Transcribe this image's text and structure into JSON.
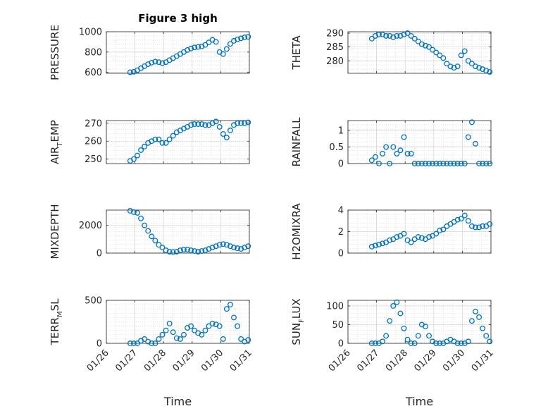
{
  "colors": {
    "marker": "#0072BD",
    "axis": "#262626",
    "grid": "#d9d9d9"
  },
  "xlabel": "Time",
  "chart_data": [
    {
      "type": "scatter",
      "title": "Figure 3 high",
      "ylabel": "PRESSURE",
      "ylim": [
        590,
        1000
      ],
      "yticks": [
        600,
        800,
        1000
      ],
      "ytick_labels": [
        "600",
        "800",
        "1000"
      ],
      "x": [
        "01/26 20:00",
        "01/26 23:00",
        "01/27 02:00",
        "01/27 05:00",
        "01/27 08:00",
        "01/27 11:00",
        "01/27 14:00",
        "01/27 17:00",
        "01/27 20:00",
        "01/27 23:00",
        "01/28 02:00",
        "01/28 05:00",
        "01/28 08:00",
        "01/28 11:00",
        "01/28 14:00",
        "01/28 17:00",
        "01/28 20:00",
        "01/28 23:00",
        "01/29 02:00",
        "01/29 05:00",
        "01/29 08:00",
        "01/29 11:00",
        "01/29 14:00",
        "01/29 17:00",
        "01/29 20:00",
        "01/29 23:00",
        "01/30 02:00",
        "01/30 05:00",
        "01/30 08:00",
        "01/30 11:00",
        "01/30 14:00",
        "01/30 17:00",
        "01/30 20:00",
        "01/30 23:00"
      ],
      "values": [
        600,
        605,
        620,
        640,
        660,
        680,
        695,
        705,
        700,
        690,
        700,
        720,
        740,
        760,
        780,
        800,
        820,
        835,
        845,
        850,
        855,
        870,
        895,
        920,
        900,
        800,
        780,
        830,
        880,
        910,
        925,
        935,
        945,
        950
      ]
    },
    {
      "type": "scatter",
      "title": "",
      "ylabel": "THETA",
      "ylim": [
        275.5,
        290.5
      ],
      "yticks": [
        280,
        285,
        290
      ],
      "ytick_labels": [
        "280",
        "285",
        "290"
      ],
      "x": [
        "01/26 20:00",
        "01/26 23:00",
        "01/27 02:00",
        "01/27 05:00",
        "01/27 08:00",
        "01/27 11:00",
        "01/27 14:00",
        "01/27 17:00",
        "01/27 20:00",
        "01/27 23:00",
        "01/28 02:00",
        "01/28 05:00",
        "01/28 08:00",
        "01/28 11:00",
        "01/28 14:00",
        "01/28 17:00",
        "01/28 20:00",
        "01/28 23:00",
        "01/29 02:00",
        "01/29 05:00",
        "01/29 08:00",
        "01/29 11:00",
        "01/29 14:00",
        "01/29 17:00",
        "01/29 20:00",
        "01/29 23:00",
        "01/30 02:00",
        "01/30 05:00",
        "01/30 08:00",
        "01/30 11:00",
        "01/30 14:00",
        "01/30 17:00",
        "01/30 20:00",
        "01/30 23:00"
      ],
      "values": [
        288,
        289,
        289.5,
        289.5,
        289,
        289,
        288.5,
        289,
        289,
        289.5,
        290,
        289,
        288,
        287,
        286,
        285.5,
        285,
        284,
        283,
        282,
        281,
        279,
        278,
        277.5,
        278,
        282,
        283.5,
        280,
        279,
        278,
        277.5,
        277,
        276.5,
        276
      ]
    },
    {
      "type": "scatter",
      "title": "",
      "ylabel": "AIR_TEMP",
      "ylabel_parts": [
        "AIR",
        "T",
        "EMP"
      ],
      "ylim": [
        247.5,
        271.5
      ],
      "yticks": [
        250,
        260,
        270
      ],
      "ytick_labels": [
        "250",
        "260",
        "270"
      ],
      "x": [
        "01/26 20:00",
        "01/26 23:00",
        "01/27 02:00",
        "01/27 05:00",
        "01/27 08:00",
        "01/27 11:00",
        "01/27 14:00",
        "01/27 17:00",
        "01/27 20:00",
        "01/27 23:00",
        "01/28 02:00",
        "01/28 05:00",
        "01/28 08:00",
        "01/28 11:00",
        "01/28 14:00",
        "01/28 17:00",
        "01/28 20:00",
        "01/28 23:00",
        "01/29 02:00",
        "01/29 05:00",
        "01/29 08:00",
        "01/29 11:00",
        "01/29 14:00",
        "01/29 17:00",
        "01/29 20:00",
        "01/29 23:00",
        "01/30 02:00",
        "01/30 05:00",
        "01/30 08:00",
        "01/30 11:00",
        "01/30 14:00",
        "01/30 17:00",
        "01/30 20:00",
        "01/30 23:00"
      ],
      "values": [
        249,
        250,
        252,
        255,
        257,
        259,
        260,
        261,
        261,
        259,
        259,
        261,
        263,
        265,
        266,
        267,
        268,
        269,
        269.5,
        269.5,
        269.5,
        269,
        269,
        270,
        271,
        268,
        264,
        262,
        266,
        269,
        270,
        270,
        270,
        270.5
      ]
    },
    {
      "type": "scatter",
      "title": "",
      "ylabel": "RAINFALL",
      "ylim": [
        0,
        1.3
      ],
      "yticks": [
        0,
        0.5,
        1
      ],
      "ytick_labels": [
        "0",
        "0.5",
        "1"
      ],
      "x": [
        "01/26 20:00",
        "01/26 23:00",
        "01/27 02:00",
        "01/27 05:00",
        "01/27 08:00",
        "01/27 11:00",
        "01/27 14:00",
        "01/27 17:00",
        "01/27 20:00",
        "01/27 23:00",
        "01/28 02:00",
        "01/28 05:00",
        "01/28 08:00",
        "01/28 11:00",
        "01/28 14:00",
        "01/28 17:00",
        "01/28 20:00",
        "01/28 23:00",
        "01/29 02:00",
        "01/29 05:00",
        "01/29 08:00",
        "01/29 11:00",
        "01/29 14:00",
        "01/29 17:00",
        "01/29 20:00",
        "01/29 23:00",
        "01/30 02:00",
        "01/30 05:00",
        "01/30 08:00",
        "01/30 11:00",
        "01/30 14:00",
        "01/30 17:00",
        "01/30 20:00",
        "01/30 23:00"
      ],
      "values": [
        0.1,
        0.2,
        0,
        0.3,
        0.5,
        0,
        0.5,
        0.3,
        0.4,
        0.8,
        0.3,
        0.3,
        0,
        0,
        0,
        0,
        0,
        0,
        0,
        0,
        0,
        0,
        0,
        0,
        0,
        0,
        0,
        0.8,
        1.25,
        0.6,
        0,
        0,
        0,
        0
      ]
    },
    {
      "type": "scatter",
      "title": "",
      "ylabel": "MIXDEPTH",
      "ylim": [
        0,
        3100
      ],
      "yticks": [
        0,
        2000
      ],
      "ytick_labels": [
        "0",
        "2000"
      ],
      "x": [
        "01/26 20:00",
        "01/26 23:00",
        "01/27 02:00",
        "01/27 05:00",
        "01/27 08:00",
        "01/27 11:00",
        "01/27 14:00",
        "01/27 17:00",
        "01/27 20:00",
        "01/27 23:00",
        "01/28 02:00",
        "01/28 05:00",
        "01/28 08:00",
        "01/28 11:00",
        "01/28 14:00",
        "01/28 17:00",
        "01/28 20:00",
        "01/28 23:00",
        "01/29 02:00",
        "01/29 05:00",
        "01/29 08:00",
        "01/29 11:00",
        "01/29 14:00",
        "01/29 17:00",
        "01/29 20:00",
        "01/29 23:00",
        "01/30 02:00",
        "01/30 05:00",
        "01/30 08:00",
        "01/30 11:00",
        "01/30 14:00",
        "01/30 17:00",
        "01/30 20:00",
        "01/30 23:00"
      ],
      "values": [
        3050,
        2950,
        2900,
        2500,
        2000,
        1600,
        1200,
        900,
        600,
        400,
        200,
        100,
        80,
        100,
        200,
        250,
        250,
        200,
        150,
        100,
        150,
        200,
        300,
        400,
        500,
        600,
        650,
        600,
        500,
        400,
        350,
        300,
        400,
        500
      ]
    },
    {
      "type": "scatter",
      "title": "",
      "ylabel": "H2OMIXRA",
      "ylim": [
        0,
        4
      ],
      "yticks": [
        0,
        2,
        4
      ],
      "ytick_labels": [
        "0",
        "2",
        "4"
      ],
      "x": [
        "01/26 20:00",
        "01/26 23:00",
        "01/27 02:00",
        "01/27 05:00",
        "01/27 08:00",
        "01/27 11:00",
        "01/27 14:00",
        "01/27 17:00",
        "01/27 20:00",
        "01/27 23:00",
        "01/28 02:00",
        "01/28 05:00",
        "01/28 08:00",
        "01/28 11:00",
        "01/28 14:00",
        "01/28 17:00",
        "01/28 20:00",
        "01/28 23:00",
        "01/29 02:00",
        "01/29 05:00",
        "01/29 08:00",
        "01/29 11:00",
        "01/29 14:00",
        "01/29 17:00",
        "01/29 20:00",
        "01/29 23:00",
        "01/30 02:00",
        "01/30 05:00",
        "01/30 08:00",
        "01/30 11:00",
        "01/30 14:00",
        "01/30 17:00",
        "01/30 20:00",
        "01/30 23:00"
      ],
      "values": [
        0.6,
        0.7,
        0.8,
        0.9,
        1.0,
        1.2,
        1.3,
        1.5,
        1.6,
        1.8,
        1.2,
        1.0,
        1.3,
        1.5,
        1.4,
        1.3,
        1.5,
        1.6,
        1.8,
        2.1,
        2.2,
        2.5,
        2.7,
        2.9,
        3.1,
        3.2,
        3.5,
        3.0,
        2.5,
        2.4,
        2.4,
        2.5,
        2.5,
        2.7
      ]
    },
    {
      "type": "scatter",
      "title": "",
      "ylabel": "TERR_MSL",
      "ylabel_parts": [
        "TERR",
        "M",
        "SL"
      ],
      "ylim": [
        0,
        500
      ],
      "yticks": [
        0,
        500
      ],
      "ytick_labels": [
        "0",
        "500"
      ],
      "x": [
        "01/26 20:00",
        "01/26 23:00",
        "01/27 02:00",
        "01/27 05:00",
        "01/27 08:00",
        "01/27 11:00",
        "01/27 14:00",
        "01/27 17:00",
        "01/27 20:00",
        "01/27 23:00",
        "01/28 02:00",
        "01/28 05:00",
        "01/28 08:00",
        "01/28 11:00",
        "01/28 14:00",
        "01/28 17:00",
        "01/28 20:00",
        "01/28 23:00",
        "01/29 02:00",
        "01/29 05:00",
        "01/29 08:00",
        "01/29 11:00",
        "01/29 14:00",
        "01/29 17:00",
        "01/29 20:00",
        "01/29 23:00",
        "01/30 02:00",
        "01/30 05:00",
        "01/30 08:00",
        "01/30 11:00",
        "01/30 14:00",
        "01/30 17:00",
        "01/30 20:00",
        "01/30 23:00"
      ],
      "values": [
        0,
        0,
        0,
        30,
        50,
        20,
        0,
        0,
        50,
        100,
        150,
        230,
        130,
        60,
        50,
        100,
        180,
        200,
        150,
        120,
        100,
        150,
        200,
        230,
        220,
        200,
        50,
        400,
        450,
        300,
        200,
        50,
        20,
        40
      ]
    },
    {
      "type": "scatter",
      "title": "",
      "ylabel": "SUN_FLUX",
      "ylabel_parts": [
        "SUN",
        "F",
        "LUX"
      ],
      "ylim": [
        0,
        115
      ],
      "yticks": [
        0,
        50,
        100
      ],
      "ytick_labels": [
        "0",
        "50",
        "100"
      ],
      "x": [
        "01/26 20:00",
        "01/26 23:00",
        "01/27 02:00",
        "01/27 05:00",
        "01/27 08:00",
        "01/27 11:00",
        "01/27 14:00",
        "01/27 17:00",
        "01/27 20:00",
        "01/27 23:00",
        "01/28 02:00",
        "01/28 05:00",
        "01/28 08:00",
        "01/28 11:00",
        "01/28 14:00",
        "01/28 17:00",
        "01/28 20:00",
        "01/28 23:00",
        "01/29 02:00",
        "01/29 05:00",
        "01/29 08:00",
        "01/29 11:00",
        "01/29 14:00",
        "01/29 17:00",
        "01/29 20:00",
        "01/29 23:00",
        "01/30 02:00",
        "01/30 05:00",
        "01/30 08:00",
        "01/30 11:00",
        "01/30 14:00",
        "01/30 17:00",
        "01/30 20:00",
        "01/30 23:00"
      ],
      "values": [
        0,
        0,
        0,
        5,
        20,
        60,
        100,
        110,
        80,
        40,
        10,
        0,
        0,
        20,
        50,
        45,
        20,
        5,
        0,
        0,
        0,
        5,
        10,
        5,
        0,
        0,
        0,
        5,
        60,
        85,
        70,
        40,
        20,
        5
      ]
    }
  ],
  "shared_x": {
    "type": "time",
    "range": [
      "01/26 00:00",
      "01/31 00:00"
    ],
    "ticks": [
      "01/26",
      "01/27",
      "01/28",
      "01/29",
      "01/30",
      "01/31"
    ],
    "tick_labels": [
      "01/26",
      "01/27",
      "01/28",
      "01/29",
      "01/30",
      "01/31"
    ]
  }
}
